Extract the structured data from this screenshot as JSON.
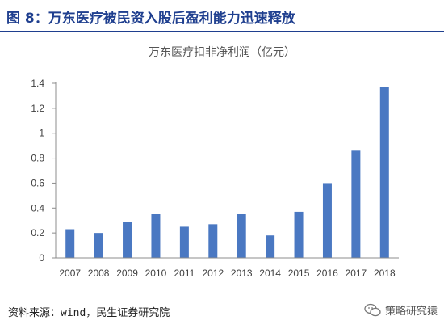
{
  "header": {
    "title": "图 8：万东医疗被民资入股后盈利能力迅速释放"
  },
  "chart_data": {
    "type": "bar",
    "title": "万东医疗扣非净利润（亿元）",
    "categories": [
      "2007",
      "2008",
      "2009",
      "2010",
      "2011",
      "2012",
      "2013",
      "2014",
      "2015",
      "2016",
      "2017",
      "2018"
    ],
    "values": [
      0.23,
      0.2,
      0.29,
      0.35,
      0.25,
      0.27,
      0.35,
      0.18,
      0.37,
      0.6,
      0.86,
      1.37
    ],
    "ylim": [
      0,
      1.4
    ],
    "yticks": [
      0,
      0.2,
      0.4,
      0.6,
      0.8,
      1,
      1.2,
      1.4
    ],
    "ytick_labels": [
      "0",
      "0.2",
      "0.4",
      "0.6",
      "0.8",
      "1",
      "1.2",
      "1.4"
    ],
    "grid": false,
    "bar_color": "#4a78c2"
  },
  "footer": {
    "source": "资料来源：wind，民生证券研究院"
  },
  "watermark": {
    "text": "策略研究猿",
    "icon": "wechat-icon"
  }
}
